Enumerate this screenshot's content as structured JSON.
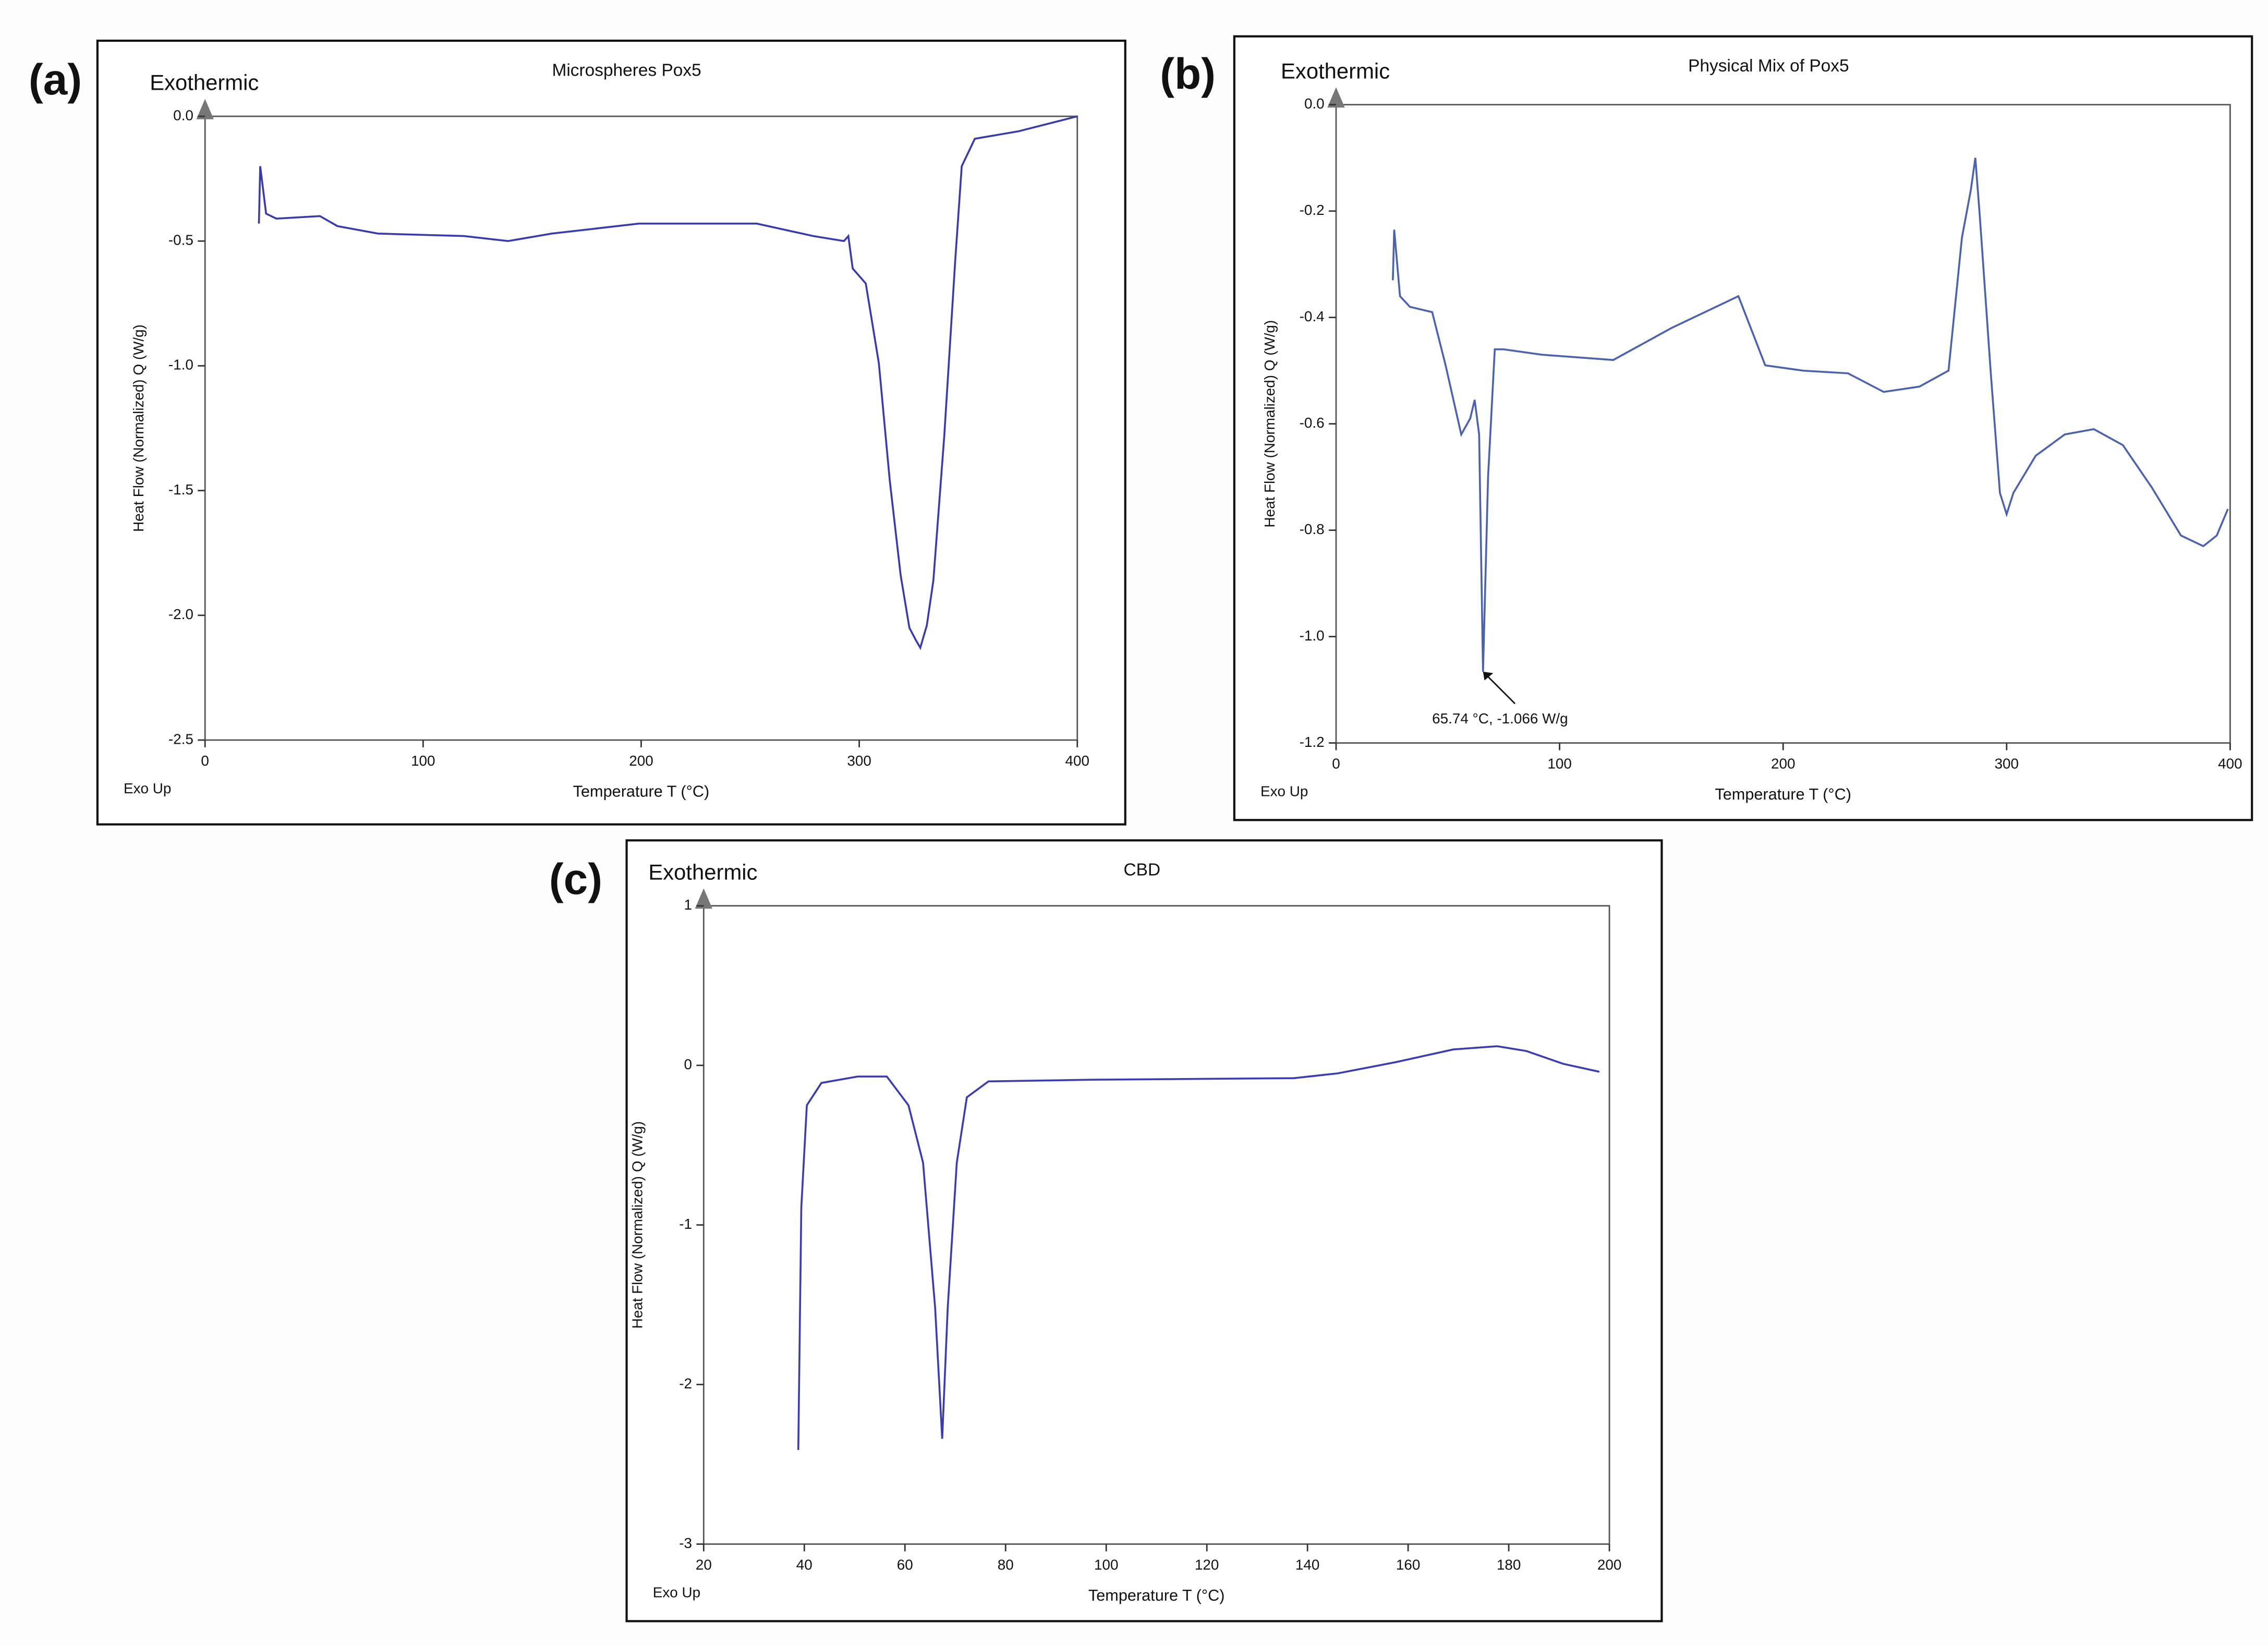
{
  "chart_data": [
    {
      "type": "line",
      "panel_label": "(a)",
      "title": "Microspheres Pox5",
      "corner_label": "Exothermic",
      "footer": "Exo Up",
      "x_label": "Temperature T (°C)",
      "y_label": "Heat Flow (Normalized) Q (W/g)",
      "color": "#3a3ab0",
      "xlim": [
        0,
        400
      ],
      "ylim": [
        -2.5,
        0
      ],
      "xticks": [
        0,
        100,
        200,
        300,
        400
      ],
      "yticks": [
        {
          "value": 0,
          "label": "0.0"
        },
        {
          "value": -0.5,
          "label": "-0.5"
        },
        {
          "value": -1,
          "label": "-1.0"
        },
        {
          "value": -1.5,
          "label": "-1.5"
        },
        {
          "value": -2,
          "label": "-2.0"
        },
        {
          "value": -2.5,
          "label": "-2.5"
        }
      ],
      "x": [
        24.7,
        25.3,
        28,
        32.7,
        52.7,
        60.7,
        79.3,
        119,
        139,
        159,
        199,
        253,
        279,
        293,
        295,
        297,
        303,
        309,
        314,
        319,
        323,
        326,
        328,
        331,
        334,
        339,
        344,
        347,
        353,
        373,
        400
      ],
      "values": [
        -0.43,
        -0.2,
        -0.39,
        -0.41,
        -0.4,
        -0.44,
        -0.47,
        -0.48,
        -0.5,
        -0.47,
        -0.43,
        -0.43,
        -0.48,
        -0.5,
        -0.48,
        -0.61,
        -0.67,
        -0.99,
        -1.46,
        -1.84,
        -2.05,
        -2.1,
        -2.13,
        -2.04,
        -1.86,
        -1.28,
        -0.58,
        -0.2,
        -0.09,
        -0.06,
        0
      ]
    },
    {
      "type": "line",
      "panel_label": "(b)",
      "title": "Physical Mix of Pox5",
      "corner_label": "Exothermic",
      "footer": "Exo Up",
      "x_label": "Temperature T (°C)",
      "y_label": "Heat Flow (Normalized) Q (W/g)",
      "color": "#4a62b0",
      "annotation": "65.74 °C, -1.066 W/g",
      "xlim": [
        0,
        400
      ],
      "ylim": [
        -1.2,
        0
      ],
      "xticks": [
        0,
        100,
        200,
        300,
        400
      ],
      "yticks": [
        {
          "value": 0,
          "label": "0.0"
        },
        -0.2,
        -0.4,
        -0.6,
        -0.8,
        {
          "value": -1,
          "label": "-1.0"
        },
        -1.2
      ],
      "x": [
        25.4,
        26,
        28.6,
        33,
        43,
        49,
        56,
        60,
        62,
        64,
        65.74,
        68,
        71,
        75,
        92,
        124,
        150,
        180,
        192,
        209,
        229,
        245,
        261,
        274,
        280,
        284,
        286,
        288,
        293,
        297,
        300,
        303,
        313,
        326,
        339,
        352,
        365,
        378,
        388,
        394,
        399
      ],
      "values": [
        -0.33,
        -0.235,
        -0.36,
        -0.38,
        -0.39,
        -0.49,
        -0.62,
        -0.59,
        -0.555,
        -0.62,
        -1.066,
        -0.7,
        -0.46,
        -0.46,
        -0.47,
        -0.48,
        -0.42,
        -0.36,
        -0.49,
        -0.5,
        -0.505,
        -0.54,
        -0.53,
        -0.5,
        -0.25,
        -0.16,
        -0.1,
        -0.21,
        -0.51,
        -0.73,
        -0.77,
        -0.73,
        -0.66,
        -0.62,
        -0.61,
        -0.64,
        -0.72,
        -0.81,
        -0.83,
        -0.81,
        -0.76
      ]
    },
    {
      "type": "line",
      "panel_label": "(c)",
      "title": "CBD",
      "corner_label": "Exothermic",
      "footer": "Exo Up",
      "x_label": "Temperature T (°C)",
      "y_label": "Heat Flow (Normalized) Q (W/g)",
      "color": "#3b3bb5",
      "xlim": [
        20,
        200
      ],
      "ylim": [
        -3,
        1
      ],
      "xticks": [
        20,
        40,
        60,
        80,
        100,
        120,
        140,
        160,
        180,
        200
      ],
      "yticks": [
        1,
        0,
        -1,
        -2,
        -3
      ],
      "x": [
        38.8,
        39.4,
        40.5,
        43.4,
        50.6,
        56.4,
        60.7,
        63.6,
        66,
        67.4,
        68.5,
        70.3,
        72.3,
        76.6,
        96.9,
        137.3,
        146,
        157.5,
        169,
        177.7,
        183.5,
        190.8,
        198
      ],
      "values": [
        -2.41,
        -0.89,
        -0.25,
        -0.11,
        -0.07,
        -0.07,
        -0.25,
        -0.61,
        -1.52,
        -2.34,
        -1.52,
        -0.61,
        -0.2,
        -0.1,
        -0.09,
        -0.08,
        -0.05,
        0.02,
        0.1,
        0.12,
        0.09,
        0.01,
        -0.04
      ]
    }
  ]
}
